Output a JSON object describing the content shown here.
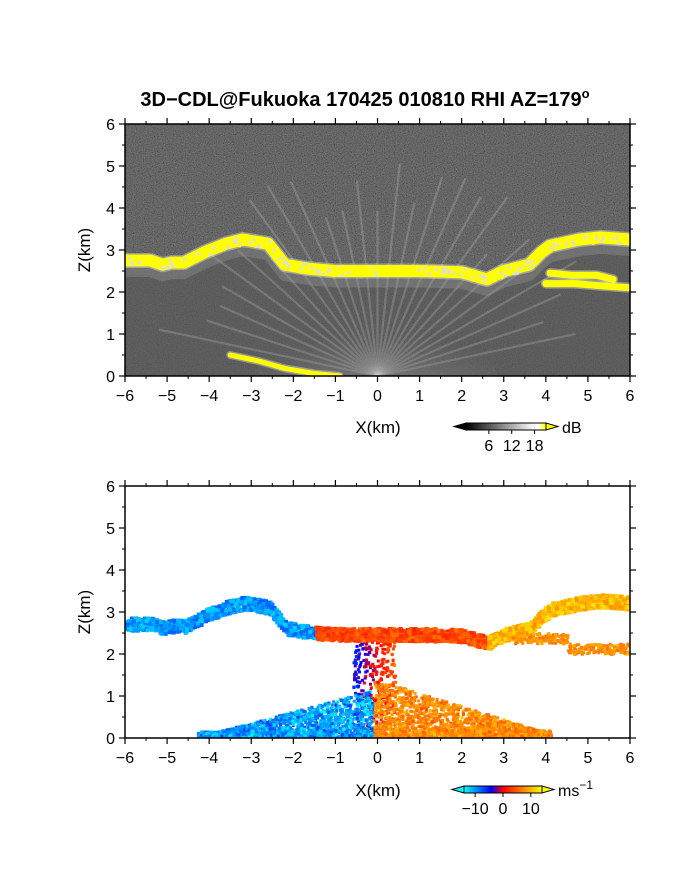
{
  "figure": {
    "title_main": "3D−CDL@Fukuoka 170425 010810 RHI AZ=179",
    "title_degree": "o"
  },
  "chart_data": [
    {
      "type": "heatmap",
      "name": "backscatter",
      "xlabel": "X(km)",
      "ylabel": "Z(km)",
      "xlim": [
        -6,
        6
      ],
      "ylim": [
        0,
        6
      ],
      "x_ticks": [
        "−6",
        "−5",
        "−4",
        "−3",
        "−2",
        "−1",
        "0",
        "1",
        "2",
        "3",
        "4",
        "5",
        "6"
      ],
      "y_ticks": [
        "0",
        "1",
        "2",
        "3",
        "4",
        "5",
        "6"
      ],
      "colorbar": {
        "unit": "dB",
        "ticks": [
          "6",
          "12",
          "18"
        ],
        "range": [
          0,
          21
        ],
        "colors": [
          "#000000",
          "#ffffff",
          "#ffff00"
        ]
      },
      "layers": [
        {
          "label": "cloud-base",
          "value_db": 21,
          "polyline": [
            [
              -6,
              2.75
            ],
            [
              -5.4,
              2.75
            ],
            [
              -5.1,
              2.65
            ],
            [
              -4.9,
              2.7
            ],
            [
              -4.6,
              2.7
            ],
            [
              -4.1,
              2.95
            ],
            [
              -3.6,
              3.15
            ],
            [
              -3.2,
              3.25
            ],
            [
              -2.6,
              3.15
            ],
            [
              -2.4,
              2.9
            ],
            [
              -2.2,
              2.65
            ],
            [
              -1.6,
              2.55
            ],
            [
              -1,
              2.5
            ],
            [
              0,
              2.5
            ],
            [
              1,
              2.5
            ],
            [
              2,
              2.47
            ],
            [
              2.6,
              2.3
            ],
            [
              3,
              2.5
            ],
            [
              3.6,
              2.65
            ],
            [
              3.9,
              2.95
            ],
            [
              4.1,
              3.1
            ],
            [
              4.8,
              3.25
            ],
            [
              5.3,
              3.3
            ],
            [
              6,
              3.25
            ]
          ]
        },
        {
          "label": "lower-layer",
          "value_db": 20,
          "polyline": [
            [
              4.1,
              2.45
            ],
            [
              4.6,
              2.4
            ],
            [
              5.2,
              2.4
            ],
            [
              5.6,
              2.3
            ]
          ]
        },
        {
          "label": "base-strip",
          "value_db": 20,
          "polyline": [
            [
              4.0,
              2.2
            ],
            [
              4.7,
              2.2
            ],
            [
              5.3,
              2.15
            ],
            [
              6,
              2.1
            ]
          ]
        },
        {
          "label": "ground-echo",
          "value_db": 21,
          "polyline": [
            [
              -3.5,
              0.5
            ],
            [
              -2.8,
              0.35
            ],
            [
              -2.2,
              0.18
            ],
            [
              -1.5,
              0.06
            ],
            [
              -0.9,
              0.0
            ]
          ]
        }
      ]
    },
    {
      "type": "heatmap",
      "name": "doppler-velocity",
      "xlabel": "X(km)",
      "ylabel": "Z(km)",
      "xlim": [
        -6,
        6
      ],
      "ylim": [
        0,
        6
      ],
      "x_ticks": [
        "−6",
        "−5",
        "−4",
        "−3",
        "−2",
        "−1",
        "0",
        "1",
        "2",
        "3",
        "4",
        "5",
        "6"
      ],
      "y_ticks": [
        "0",
        "1",
        "2",
        "3",
        "4",
        "5",
        "6"
      ],
      "colorbar": {
        "unit": "ms",
        "unit_exponent": "−1",
        "ticks": [
          "−10",
          "0",
          "10"
        ],
        "range": [
          -14,
          14
        ],
        "colors": [
          "#00ffff",
          "#0000ff",
          "#ff0000",
          "#ffff00"
        ]
      },
      "layers": [
        {
          "label": "upper-band-west",
          "velocity_ms": -10,
          "x": [
            -6,
            -1.5
          ],
          "z_follow": "cloud-base"
        },
        {
          "label": "upper-band-center",
          "velocity_ms": 4,
          "x": [
            -1.5,
            2.6
          ],
          "z_follow": "cloud-base"
        },
        {
          "label": "upper-band-east",
          "velocity_ms": 10,
          "x": [
            2.6,
            6
          ],
          "z_follow": "cloud-base"
        },
        {
          "label": "boundary-layer-west",
          "velocity_ms": -12,
          "x": [
            -4.3,
            -0.1
          ],
          "z": [
            0,
            1.2
          ]
        },
        {
          "label": "boundary-layer-east",
          "velocity_ms": 9,
          "x": [
            -0.1,
            4.1
          ],
          "z": [
            0,
            1.4
          ]
        }
      ]
    }
  ]
}
